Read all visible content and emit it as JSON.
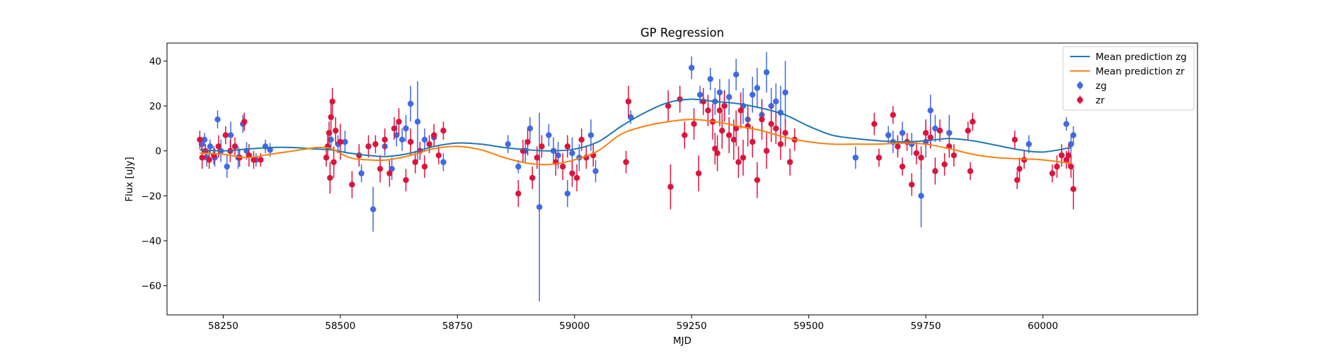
{
  "chart_data": {
    "type": "scatter",
    "title": "GP Regression",
    "xlabel": "MJD",
    "ylabel": "Flux [uJy]",
    "xlim": [
      58130,
      60330
    ],
    "ylim": [
      -73,
      48
    ],
    "xticks": [
      58250,
      58500,
      58750,
      59000,
      59250,
      59500,
      59750,
      60000
    ],
    "yticks": [
      -60,
      -40,
      -20,
      0,
      20,
      40
    ],
    "legend": "top-right",
    "grid": false,
    "colors": {
      "zg_line": "#1f77b4",
      "zr_line": "#ff7f0e",
      "zg_points": "#4169e1",
      "zr_points": "#dc143c"
    },
    "lines": [
      {
        "name": "Mean prediction zg",
        "x": [
          58200,
          58250,
          58300,
          58350,
          58400,
          58450,
          58480,
          58520,
          58560,
          58600,
          58650,
          58700,
          58750,
          58800,
          58850,
          58900,
          58950,
          59000,
          59050,
          59100,
          59150,
          59200,
          59250,
          59300,
          59350,
          59400,
          59450,
          59500,
          59550,
          59600,
          59650,
          59700,
          59750,
          59800,
          59850,
          59900,
          59950,
          60000,
          60060
        ],
        "y": [
          0.5,
          0,
          0.8,
          1.5,
          1.5,
          0.8,
          0.5,
          -1,
          -2,
          -2.5,
          -1,
          2,
          3.5,
          3,
          1.5,
          0.5,
          0,
          0.8,
          4,
          11,
          17,
          21.5,
          23,
          22,
          21,
          19,
          16,
          11,
          7,
          5.5,
          4.5,
          4,
          4.5,
          5.5,
          4.5,
          2.5,
          0.5,
          -0.5,
          1.5
        ]
      },
      {
        "name": "Mean prediction zr",
        "x": [
          58200,
          58250,
          58300,
          58350,
          58400,
          58450,
          58480,
          58520,
          58560,
          58600,
          58650,
          58700,
          58750,
          58800,
          58850,
          58900,
          58950,
          59000,
          59050,
          59100,
          59150,
          59200,
          59250,
          59300,
          59350,
          59400,
          59450,
          59500,
          59550,
          59600,
          59650,
          59700,
          59750,
          59800,
          59850,
          59900,
          59950,
          60000,
          60060
        ],
        "y": [
          -1,
          -1.5,
          -3,
          -1.5,
          0,
          1.5,
          1,
          -3,
          -4,
          -4,
          -2,
          1,
          2,
          0.5,
          -3,
          -5.5,
          -6,
          -4,
          0,
          7.5,
          11,
          13,
          14,
          13,
          11,
          9,
          6,
          4,
          3,
          3,
          3,
          3.5,
          3,
          1,
          -1.5,
          -3,
          -3.5,
          -4,
          -5.5
        ]
      }
    ],
    "series": [
      {
        "name": "zg",
        "x": [
          58204,
          58210,
          58215,
          58222,
          58232,
          58238,
          58245,
          58258,
          58266,
          58282,
          58292,
          58300,
          58320,
          58340,
          58350,
          58480,
          58495,
          58510,
          58545,
          58570,
          58595,
          58610,
          58620,
          58632,
          58640,
          58650,
          58665,
          58680,
          58700,
          58720,
          58858,
          58880,
          58895,
          58905,
          58925,
          58945,
          58955,
          58965,
          58985,
          58995,
          59010,
          59035,
          59045,
          59120,
          59250,
          59268,
          59290,
          59300,
          59310,
          59320,
          59330,
          59345,
          59360,
          59370,
          59380,
          59390,
          59400,
          59410,
          59420,
          59430,
          59440,
          59450,
          59600,
          59670,
          59680,
          59690,
          59700,
          59720,
          59740,
          59750,
          59760,
          59770,
          59800,
          59970,
          60040,
          60050,
          60060,
          60065
        ],
        "y": [
          3,
          5,
          -3,
          2,
          -3,
          14,
          0,
          -7,
          7,
          -3,
          12,
          0,
          -4,
          2,
          0.5,
          5,
          3,
          4,
          -10,
          -26,
          2,
          -8,
          7,
          5,
          10,
          21,
          13,
          5,
          6,
          -5,
          3,
          -7,
          0,
          10,
          -25,
          7,
          0,
          -2,
          -19,
          -1,
          -3,
          7,
          -9,
          15,
          37,
          25,
          32,
          22,
          26,
          20,
          24,
          34,
          20,
          14,
          25,
          28,
          16,
          35,
          20,
          22,
          17,
          26,
          -3,
          7,
          4,
          2,
          8,
          3,
          -20,
          4,
          18,
          10,
          8,
          3,
          -2,
          12,
          3,
          7
        ],
        "err": [
          3,
          3,
          4,
          3,
          4,
          4,
          5,
          5,
          6,
          5,
          4,
          4,
          3,
          3,
          3,
          4,
          4,
          5,
          4,
          10,
          4,
          5,
          5,
          5,
          6,
          8,
          18,
          5,
          4,
          4,
          4,
          3,
          5,
          5,
          42,
          5,
          6,
          6,
          6,
          7,
          6,
          7,
          5,
          3,
          5,
          4,
          5,
          6,
          6,
          7,
          8,
          7,
          8,
          6,
          8,
          9,
          7,
          9,
          8,
          8,
          12,
          14,
          5,
          4,
          5,
          4,
          5,
          5,
          14,
          7,
          7,
          6,
          8,
          4,
          3,
          3,
          4,
          4
        ]
      },
      {
        "name": "zr",
        "x": [
          58200,
          58205,
          58212,
          58220,
          58230,
          58240,
          58255,
          58265,
          58275,
          58285,
          58295,
          58305,
          58315,
          58330,
          58470,
          58473,
          58476,
          58478,
          58480,
          58483,
          58486,
          58490,
          58500,
          58525,
          58540,
          58560,
          58575,
          58585,
          58595,
          58605,
          58615,
          58625,
          58640,
          58650,
          58660,
          58670,
          58680,
          58690,
          58700,
          58710,
          58720,
          58880,
          58890,
          58900,
          58910,
          58920,
          58930,
          58960,
          58975,
          58985,
          58995,
          59005,
          59015,
          59025,
          59040,
          59110,
          59115,
          59200,
          59205,
          59225,
          59235,
          59255,
          59265,
          59275,
          59285,
          59295,
          59300,
          59305,
          59310,
          59315,
          59320,
          59330,
          59340,
          59345,
          59350,
          59355,
          59360,
          59370,
          59380,
          59390,
          59400,
          59410,
          59420,
          59430,
          59440,
          59450,
          59460,
          59470,
          59640,
          59650,
          59680,
          59690,
          59700,
          59710,
          59720,
          59730,
          59740,
          59750,
          59760,
          59770,
          59780,
          59790,
          59800,
          59810,
          59840,
          59845,
          59850,
          59940,
          59945,
          59950,
          59960,
          60020,
          60030,
          60040,
          60050,
          60055,
          60060,
          60065
        ],
        "y": [
          5,
          -3,
          0,
          -4,
          -2,
          2,
          7,
          0,
          2,
          -3,
          13,
          -2,
          -4,
          -4,
          -3,
          2,
          8,
          -12,
          15,
          22,
          -5,
          9,
          4,
          -15,
          -2,
          2,
          3,
          -8,
          5,
          -10,
          10,
          13,
          -13,
          4,
          -5,
          0,
          -7,
          3,
          7,
          -2,
          9,
          -19,
          0,
          4,
          -12,
          -3,
          2,
          -5,
          -7,
          2,
          -10,
          -12,
          5,
          -3,
          -2,
          -5,
          22,
          20,
          -16,
          23,
          7,
          12,
          -10,
          22,
          18,
          13,
          1,
          -1,
          18,
          9,
          20,
          7,
          5,
          10,
          -5,
          18,
          -3,
          11,
          4,
          -13,
          14,
          0,
          12,
          10,
          3,
          8,
          -5,
          5,
          12,
          -3,
          16,
          2,
          -7,
          4,
          -15,
          -1,
          -3,
          8,
          6,
          -9,
          9,
          -6,
          2,
          -2,
          9,
          -9,
          13,
          5,
          -13,
          -8,
          -4,
          -10,
          -7,
          -2,
          -4,
          -2,
          -7,
          -17
        ],
        "err": [
          4,
          5,
          3,
          4,
          4,
          5,
          4,
          5,
          4,
          4,
          4,
          5,
          4,
          3,
          4,
          5,
          5,
          7,
          6,
          6,
          7,
          6,
          8,
          6,
          5,
          5,
          4,
          6,
          5,
          6,
          5,
          6,
          5,
          6,
          5,
          4,
          5,
          4,
          5,
          4,
          4,
          6,
          5,
          6,
          5,
          5,
          5,
          6,
          6,
          5,
          6,
          6,
          5,
          5,
          5,
          5,
          7,
          7,
          10,
          6,
          6,
          7,
          8,
          6,
          7,
          8,
          7,
          8,
          7,
          8,
          7,
          8,
          9,
          8,
          7,
          8,
          8,
          9,
          7,
          8,
          9,
          8,
          8,
          7,
          7,
          6,
          6,
          5,
          5,
          4,
          4,
          5,
          4,
          4,
          5,
          5,
          5,
          6,
          5,
          6,
          5,
          5,
          5,
          5,
          4,
          4,
          4,
          4,
          4,
          5,
          4,
          4,
          5,
          5,
          4,
          5,
          5,
          9
        ]
      }
    ]
  }
}
